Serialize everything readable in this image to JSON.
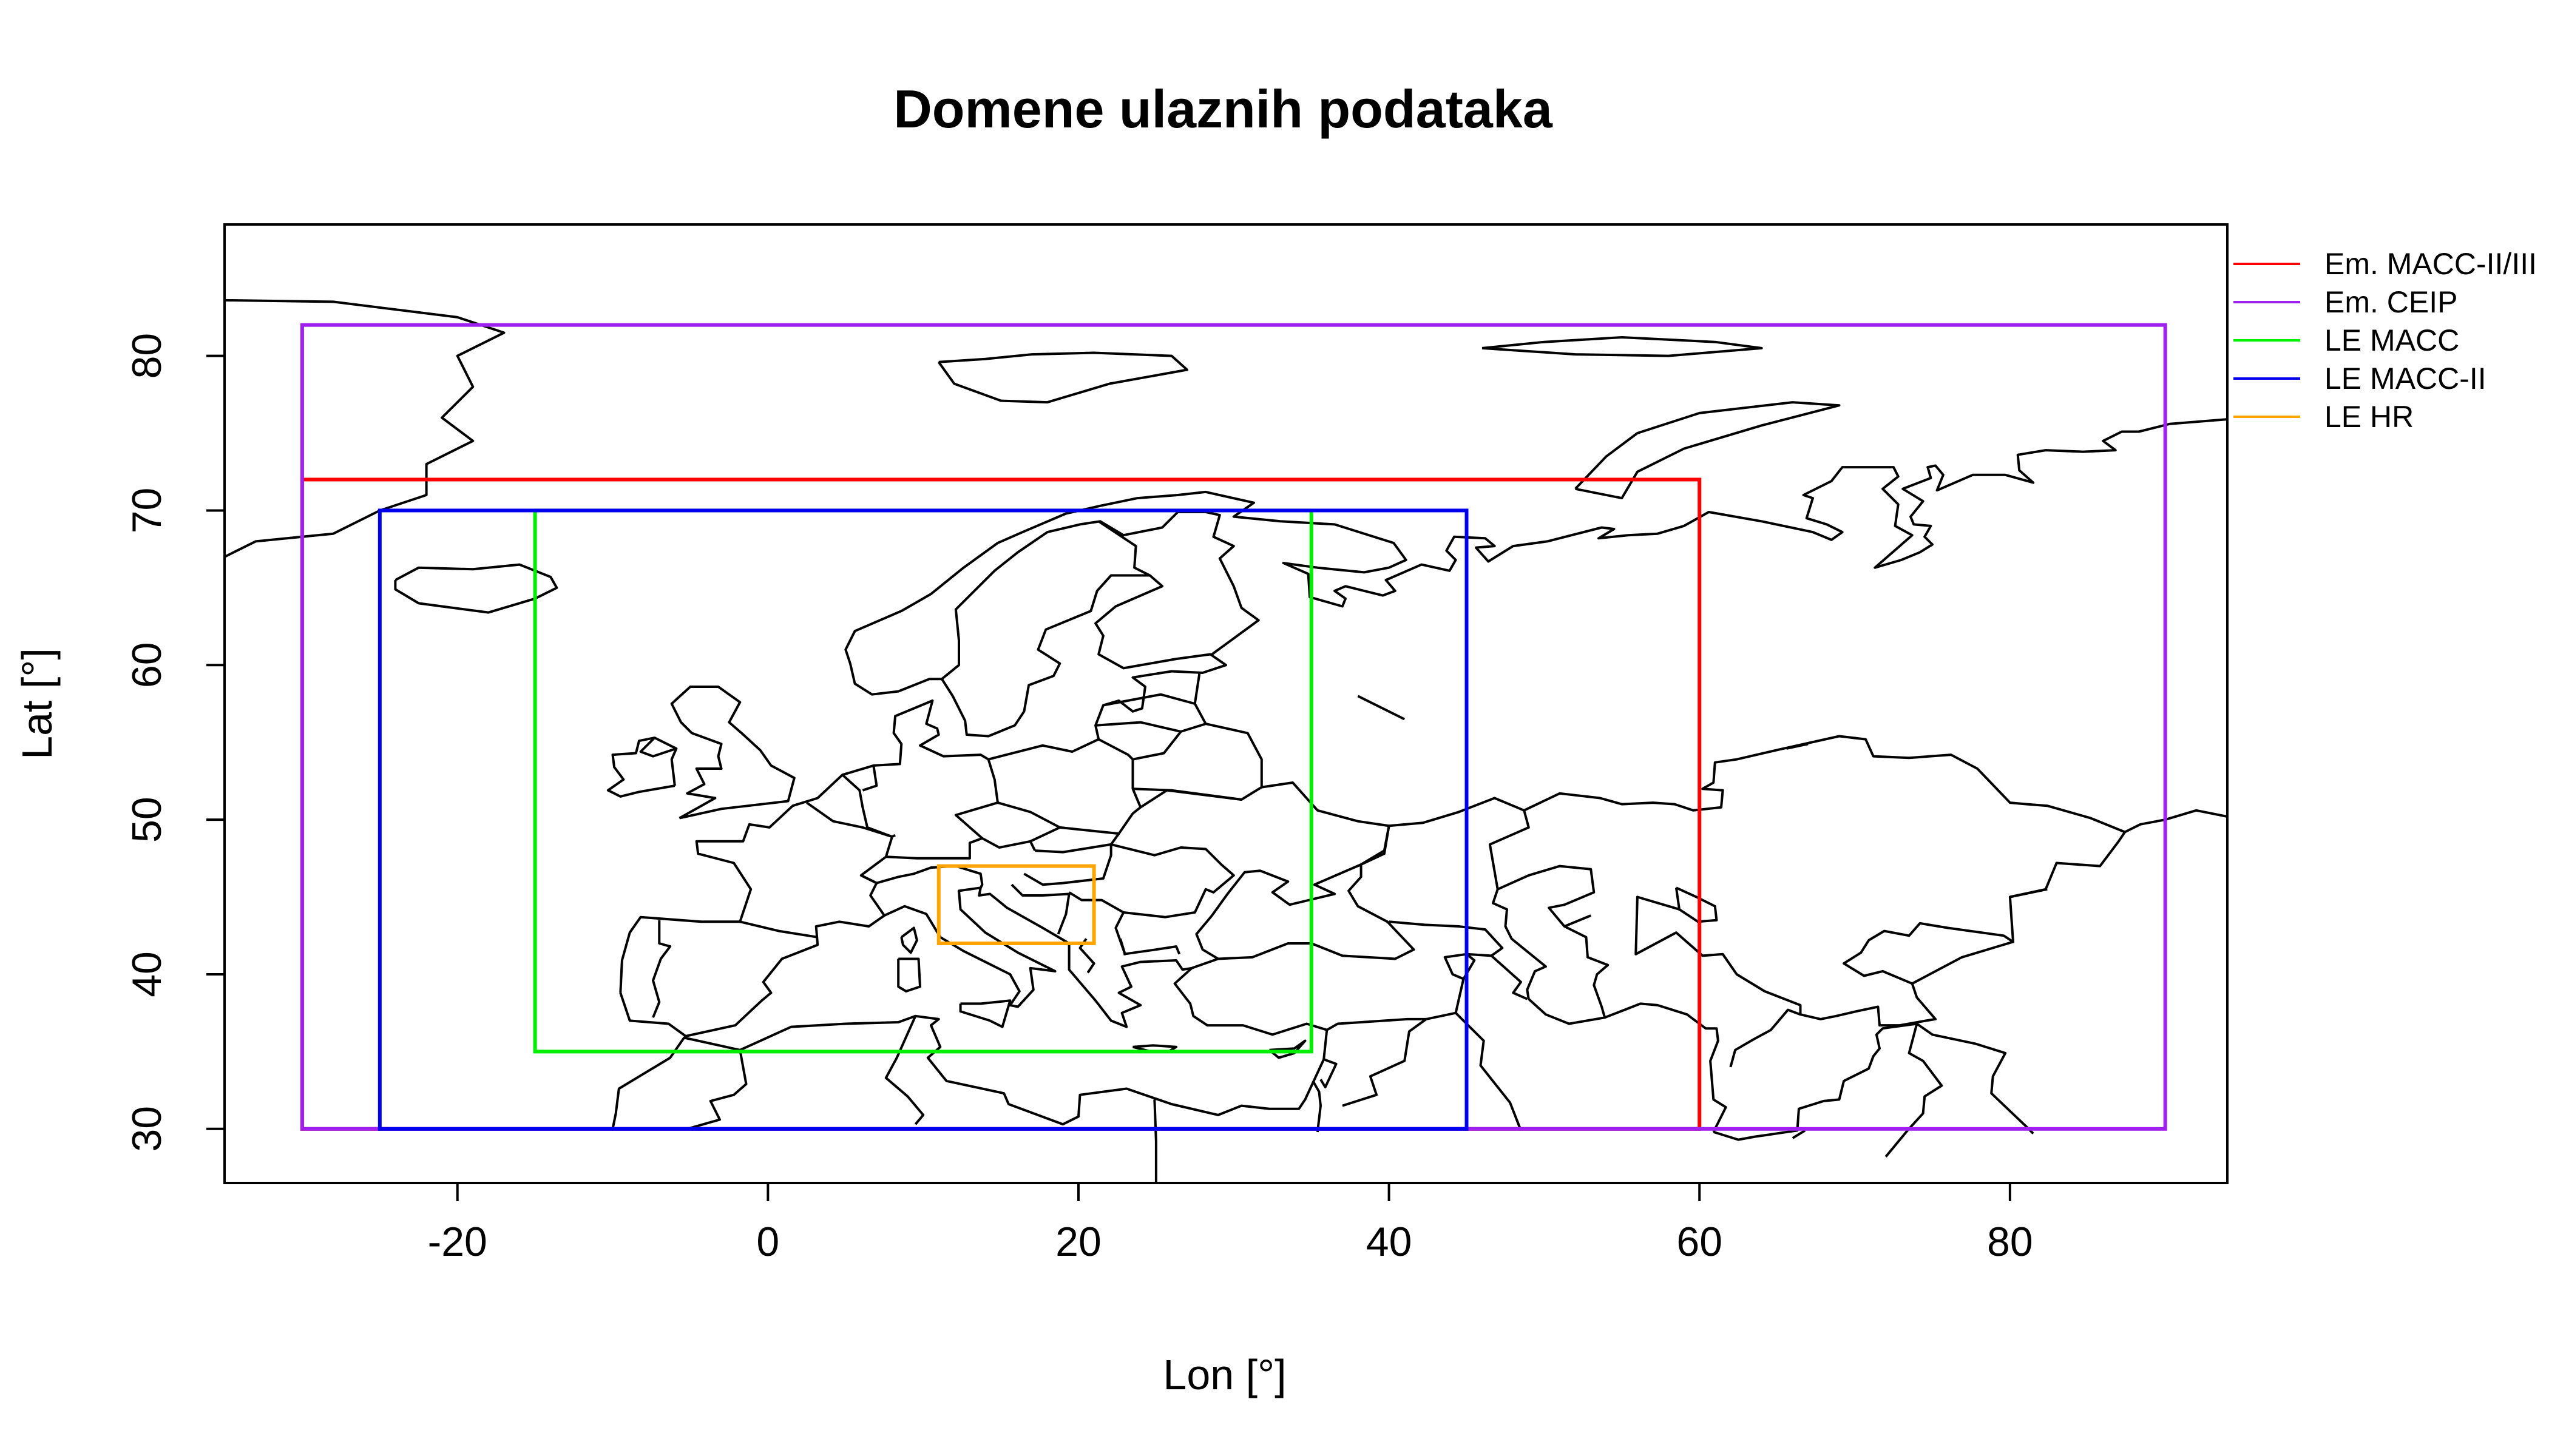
{
  "title": "Domene ulaznih podataka",
  "xlabel": "Lon [°]",
  "ylabel": "Lat [°]",
  "chart_data": {
    "type": "map",
    "xlim": [
      -35,
      94
    ],
    "ylim": [
      26.5,
      88.5
    ],
    "xticks": [
      -20,
      0,
      20,
      40,
      60,
      80
    ],
    "yticks": [
      30,
      40,
      50,
      60,
      70,
      80
    ],
    "legend_position": "top-right, outside plot",
    "domains": [
      {
        "name": "Em. MACC-II/III",
        "color": "#ff0000",
        "lon": [
          -30,
          60
        ],
        "lat": [
          30,
          72
        ]
      },
      {
        "name": "Em. CEIP",
        "color": "#a020f0",
        "lon": [
          -30,
          90
        ],
        "lat": [
          30,
          82
        ]
      },
      {
        "name": "LE MACC",
        "color": "#00ee00",
        "lon": [
          -15,
          35
        ],
        "lat": [
          35,
          70
        ]
      },
      {
        "name": "LE MACC-II",
        "color": "#0000ee",
        "lon": [
          -25,
          45
        ],
        "lat": [
          30,
          70
        ]
      },
      {
        "name": "LE HR",
        "color": "#ffa500",
        "lon": [
          11,
          21
        ],
        "lat": [
          42,
          47
        ]
      }
    ]
  }
}
